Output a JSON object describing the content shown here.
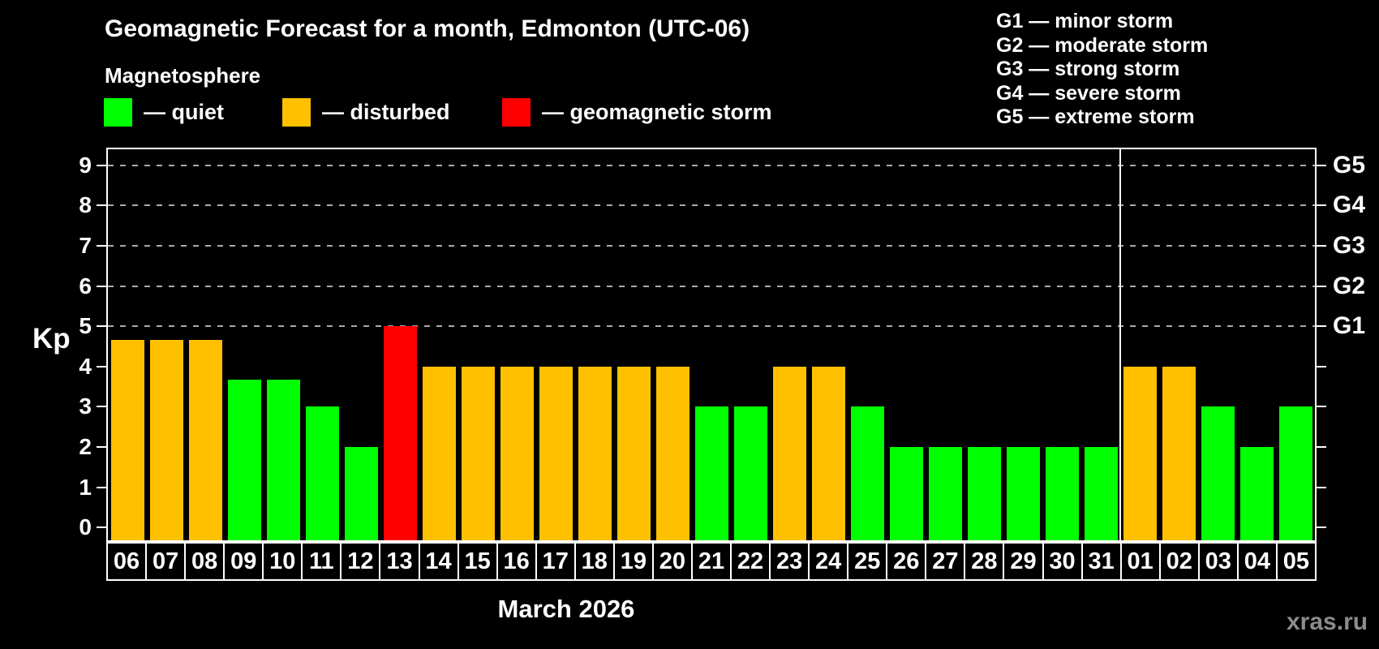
{
  "header": {
    "title": "Geomagnetic Forecast for a month, Edmonton (UTC-06)",
    "subtitle": "Magnetosphere"
  },
  "legend": {
    "items": [
      {
        "label": "— quiet",
        "status": "quiet",
        "color": "#00ff00"
      },
      {
        "label": "— disturbed",
        "status": "disturbed",
        "color": "#ffc000"
      },
      {
        "label": "— geomagnetic storm",
        "status": "storm",
        "color": "#ff0000"
      }
    ]
  },
  "g_legend": {
    "items": [
      "G1 — minor storm",
      "G2 — moderate storm",
      "G3 — strong storm",
      "G4 — severe storm",
      "G5 — extreme storm"
    ]
  },
  "axes": {
    "y_label": "Kp",
    "y_ticks": [
      0,
      1,
      2,
      3,
      4,
      5,
      6,
      7,
      8,
      9
    ],
    "right_labels": [
      {
        "kp": 5,
        "text": "G1"
      },
      {
        "kp": 6,
        "text": "G2"
      },
      {
        "kp": 7,
        "text": "G3"
      },
      {
        "kp": 8,
        "text": "G4"
      },
      {
        "kp": 9,
        "text": "G5"
      }
    ],
    "x_title": "March 2026"
  },
  "watermark": "xras.ru",
  "chart_data": {
    "type": "bar",
    "title": "Geomagnetic Forecast for a month, Edmonton (UTC-06)",
    "xlabel": "March 2026",
    "ylabel": "Kp",
    "ylim": [
      -0.32,
      9.4
    ],
    "gridlines_kp": [
      5,
      6,
      7,
      8,
      9
    ],
    "legend_position": "top",
    "categories": [
      "06",
      "07",
      "08",
      "09",
      "10",
      "11",
      "12",
      "13",
      "14",
      "15",
      "16",
      "17",
      "18",
      "19",
      "20",
      "21",
      "22",
      "23",
      "24",
      "25",
      "26",
      "27",
      "28",
      "29",
      "30",
      "31",
      "01",
      "02",
      "03",
      "04",
      "05"
    ],
    "values": [
      4.67,
      4.67,
      4.67,
      3.67,
      3.67,
      3,
      2,
      5,
      4,
      4,
      4,
      4,
      4,
      4,
      4,
      3,
      3,
      4,
      4,
      3,
      2,
      2,
      2,
      2,
      2,
      2,
      4,
      4,
      3,
      2,
      3
    ],
    "statuses": [
      "disturbed",
      "disturbed",
      "disturbed",
      "quiet",
      "quiet",
      "quiet",
      "quiet",
      "storm",
      "disturbed",
      "disturbed",
      "disturbed",
      "disturbed",
      "disturbed",
      "disturbed",
      "disturbed",
      "quiet",
      "quiet",
      "disturbed",
      "disturbed",
      "quiet",
      "quiet",
      "quiet",
      "quiet",
      "quiet",
      "quiet",
      "quiet",
      "disturbed",
      "disturbed",
      "quiet",
      "quiet",
      "quiet"
    ],
    "month_separator_after_index": 25,
    "colors": {
      "quiet": "#00ff00",
      "disturbed": "#ffc000",
      "storm": "#ff0000"
    }
  }
}
